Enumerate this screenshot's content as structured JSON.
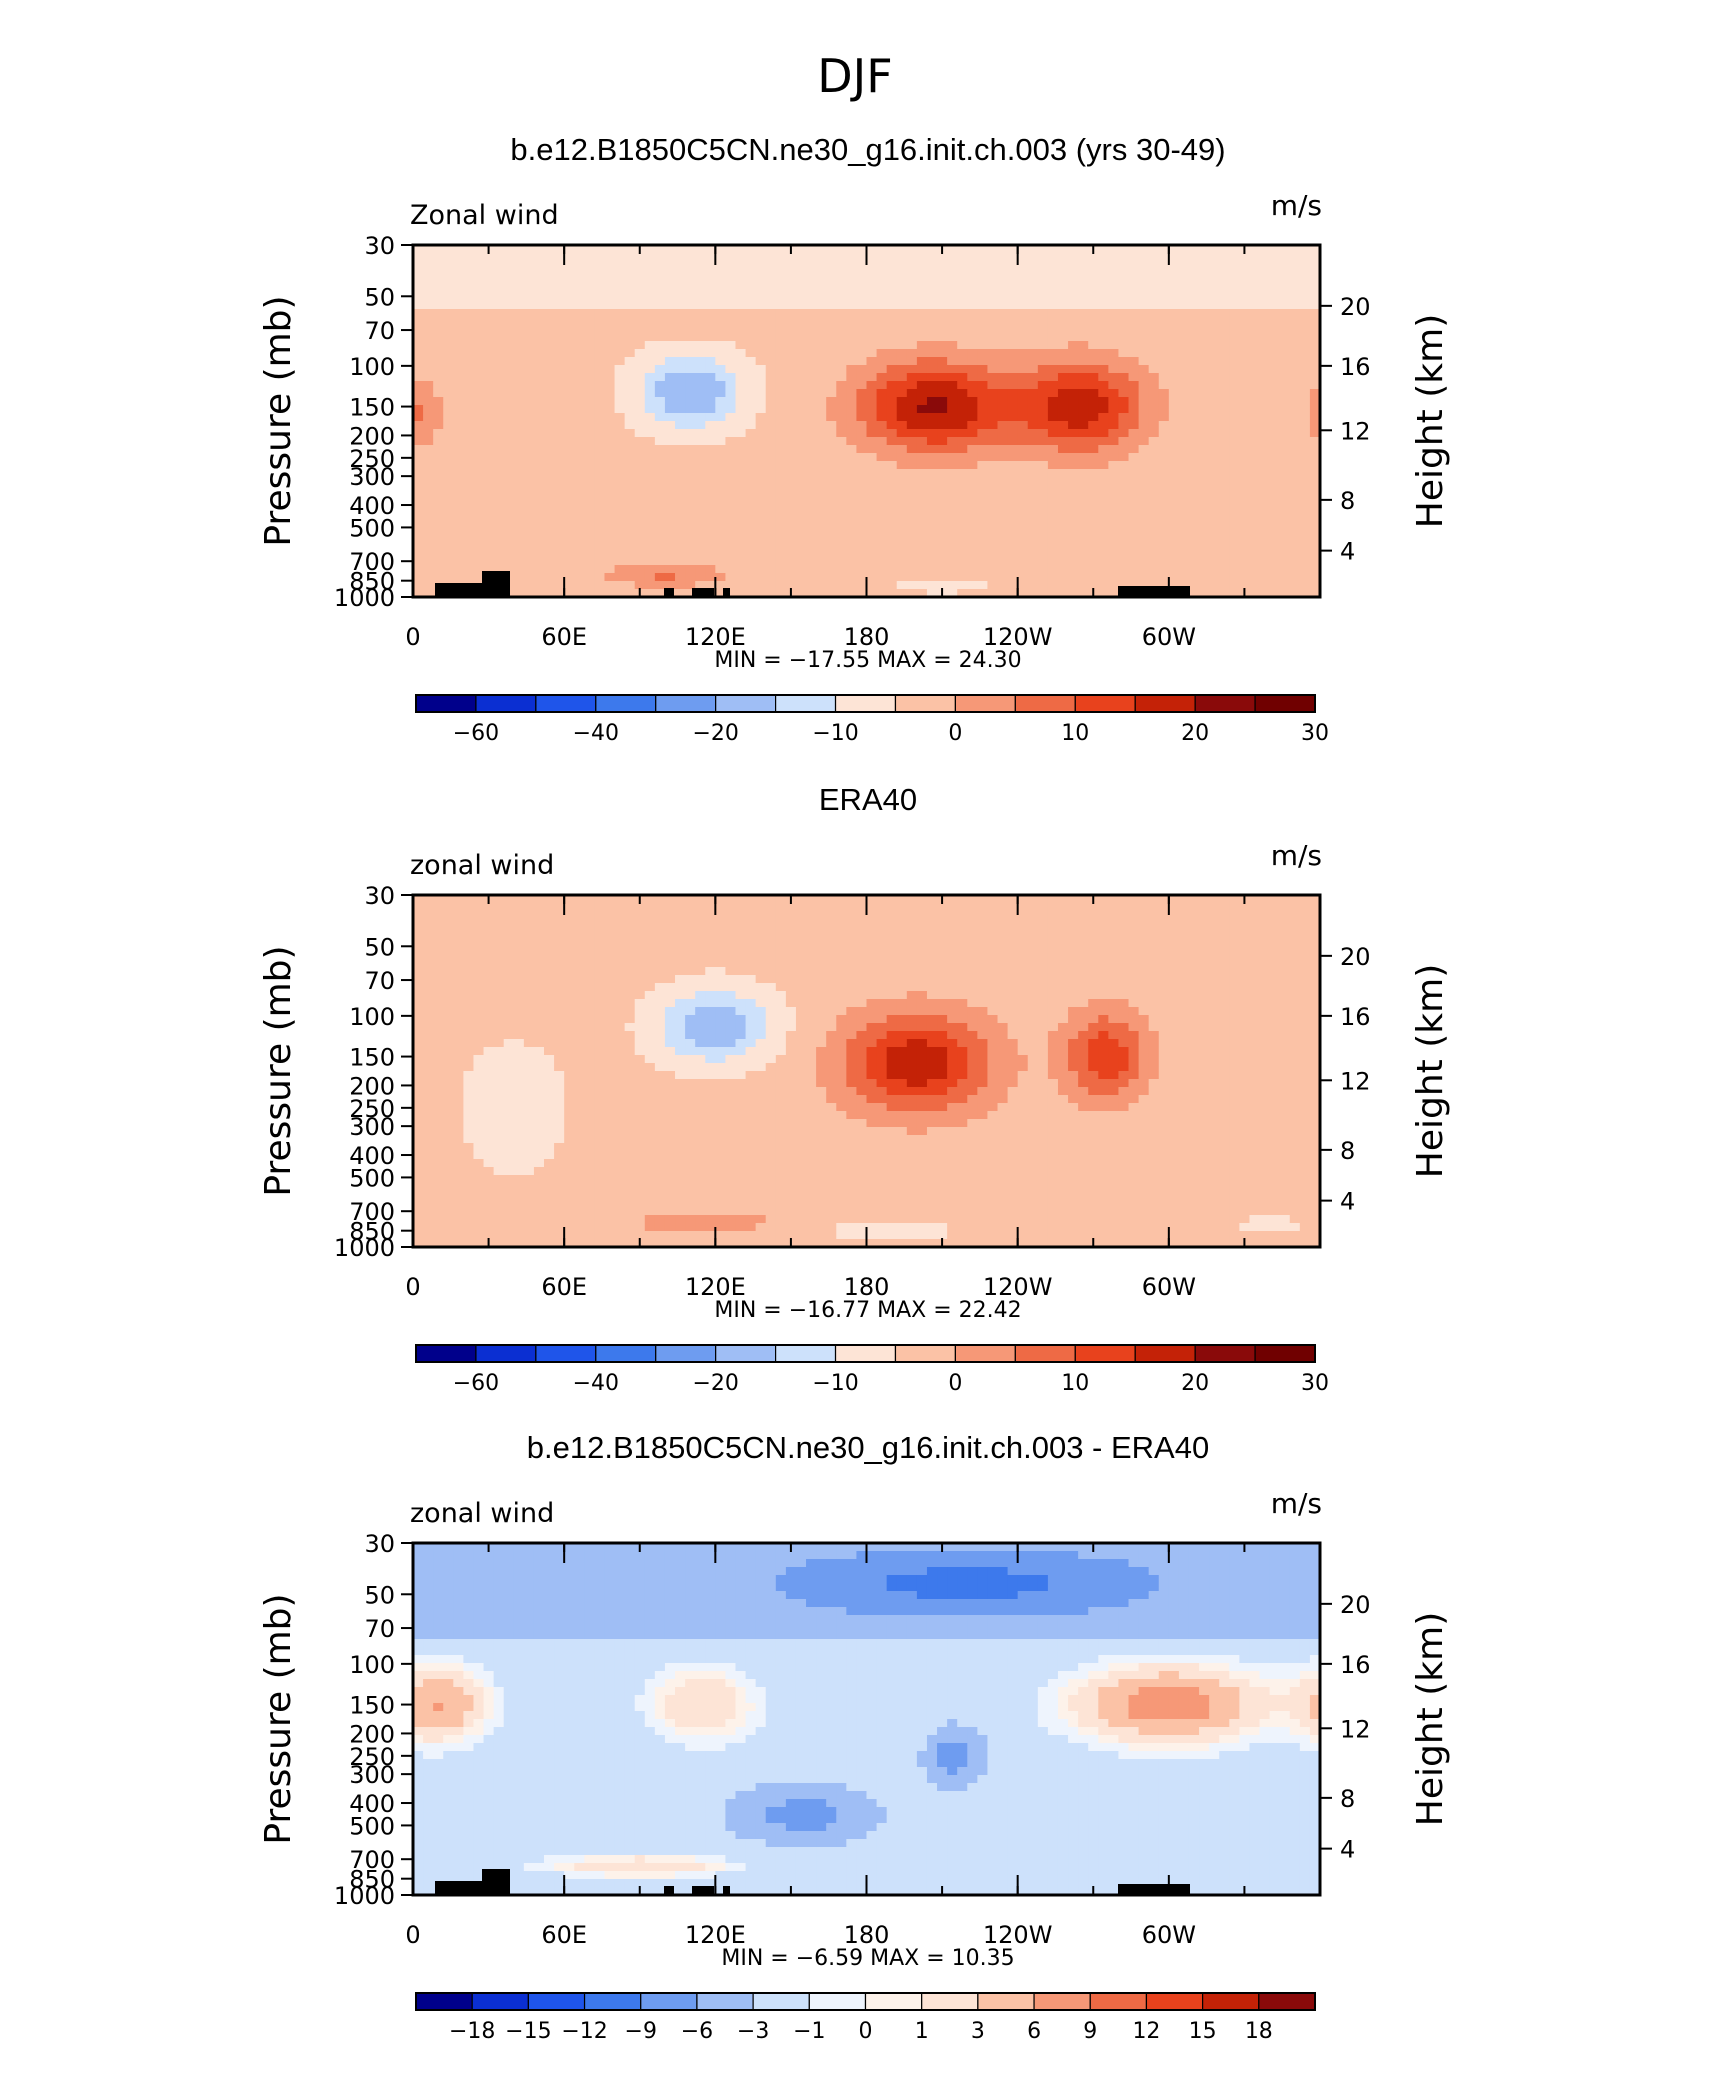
{
  "figure_title": "DJF",
  "chart_data": [
    {
      "type": "heatmap",
      "title": "b.e12.B1850C5CN.ne30_g16.init.ch.003 (yrs 30-49)",
      "left_label": "Zonal wind",
      "units": "m/s",
      "ylabel": "Pressure (mb)",
      "ylabel_right": "Height (km)",
      "y_ticks": [
        "30",
        "50",
        "70",
        "100",
        "150",
        "200",
        "250",
        "300",
        "400",
        "500",
        "700",
        "850",
        "1000"
      ],
      "y_ticks_right": [
        "20",
        "16",
        "12",
        "8",
        "4"
      ],
      "x_ticks": [
        "0",
        "60E",
        "120E",
        "180",
        "120W",
        "60W"
      ],
      "stats": "MIN = −17.55   MAX =   24.30",
      "min": -17.55,
      "max": 24.3,
      "colorbar_labels": [
        "−60",
        "−40",
        "−20",
        "−10",
        "0",
        "10",
        "20",
        "30"
      ],
      "blobs": [
        {
          "lon": 207,
          "p": 150,
          "value": 24.3,
          "wx": 30,
          "wy": 0.45
        },
        {
          "lon": 265,
          "p": 150,
          "value": 22.0,
          "wx": 25,
          "wy": 0.45
        },
        {
          "lon": 3,
          "p": 160,
          "value": 9.0,
          "wx": 8,
          "wy": 0.35
        },
        {
          "lon": 110,
          "p": 130,
          "value": -17.5,
          "wx": 20,
          "wy": 0.35
        },
        {
          "lon": 100,
          "p": 800,
          "value": 9.0,
          "wx": 25,
          "wy": 0.12
        },
        {
          "lon": 210,
          "p": 900,
          "value": -6.0,
          "wx": 15,
          "wy": 0.06
        }
      ]
    },
    {
      "type": "heatmap",
      "title": "ERA40",
      "left_label": "zonal wind",
      "units": "m/s",
      "ylabel": "Pressure (mb)",
      "ylabel_right": "Height (km)",
      "y_ticks": [
        "30",
        "50",
        "70",
        "100",
        "150",
        "200",
        "250",
        "300",
        "400",
        "500",
        "700",
        "850",
        "1000"
      ],
      "y_ticks_right": [
        "20",
        "16",
        "12",
        "8",
        "4"
      ],
      "x_ticks": [
        "0",
        "60E",
        "120E",
        "180",
        "120W",
        "60W"
      ],
      "stats": "MIN = −16.77   MAX =   22.42",
      "min": -16.77,
      "max": 22.42,
      "colorbar_labels": [
        "−60",
        "−40",
        "−20",
        "−10",
        "0",
        "10",
        "20",
        "30"
      ],
      "blobs": [
        {
          "lon": 200,
          "p": 160,
          "value": 22.4,
          "wx": 30,
          "wy": 0.5
        },
        {
          "lon": 275,
          "p": 150,
          "value": 17.0,
          "wx": 17,
          "wy": 0.45
        },
        {
          "lon": 120,
          "p": 110,
          "value": -16.7,
          "wx": 22,
          "wy": 0.35
        },
        {
          "lon": 40,
          "p": 250,
          "value": -5.0,
          "wx": 20,
          "wy": 0.6
        },
        {
          "lon": 115,
          "p": 780,
          "value": 7.0,
          "wx": 30,
          "wy": 0.12
        },
        {
          "lon": 190,
          "p": 850,
          "value": -4.0,
          "wx": 25,
          "wy": 0.1
        },
        {
          "lon": 340,
          "p": 800,
          "value": -3.0,
          "wx": 15,
          "wy": 0.1
        }
      ]
    },
    {
      "type": "heatmap",
      "title": "b.e12.B1850C5CN.ne30_g16.init.ch.003 - ERA40",
      "left_label": "zonal wind",
      "units": "m/s",
      "ylabel": "Pressure (mb)",
      "ylabel_right": "Height (km)",
      "y_ticks": [
        "30",
        "50",
        "70",
        "100",
        "150",
        "200",
        "250",
        "300",
        "400",
        "500",
        "700",
        "850",
        "1000"
      ],
      "y_ticks_right": [
        "20",
        "16",
        "12",
        "8",
        "4"
      ],
      "x_ticks": [
        "0",
        "60E",
        "120E",
        "180",
        "120W",
        "60W"
      ],
      "stats": "MIN =    −6.59   MAX =   10.35",
      "min": -6.59,
      "max": 10.35,
      "colorbar_labels": [
        "−18",
        "−15",
        "−12",
        "−9",
        "−6",
        "−3",
        "−1",
        "0",
        "1",
        "3",
        "6",
        "9",
        "12",
        "15",
        "18"
      ],
      "blobs": [
        {
          "lon": 220,
          "p": 45,
          "value": -6.5,
          "wx": 80,
          "wy": 0.35
        },
        {
          "lon": 10,
          "p": 150,
          "value": 8.0,
          "wx": 18,
          "wy": 0.35
        },
        {
          "lon": 115,
          "p": 150,
          "value": 5.0,
          "wx": 20,
          "wy": 0.35
        },
        {
          "lon": 300,
          "p": 150,
          "value": 10.3,
          "wx": 35,
          "wy": 0.35
        },
        {
          "lon": 155,
          "p": 450,
          "value": -5.5,
          "wx": 25,
          "wy": 0.25
        },
        {
          "lon": 215,
          "p": 250,
          "value": -6.0,
          "wx": 10,
          "wy": 0.25
        },
        {
          "lon": 90,
          "p": 750,
          "value": 5.0,
          "wx": 35,
          "wy": 0.1
        }
      ]
    }
  ]
}
